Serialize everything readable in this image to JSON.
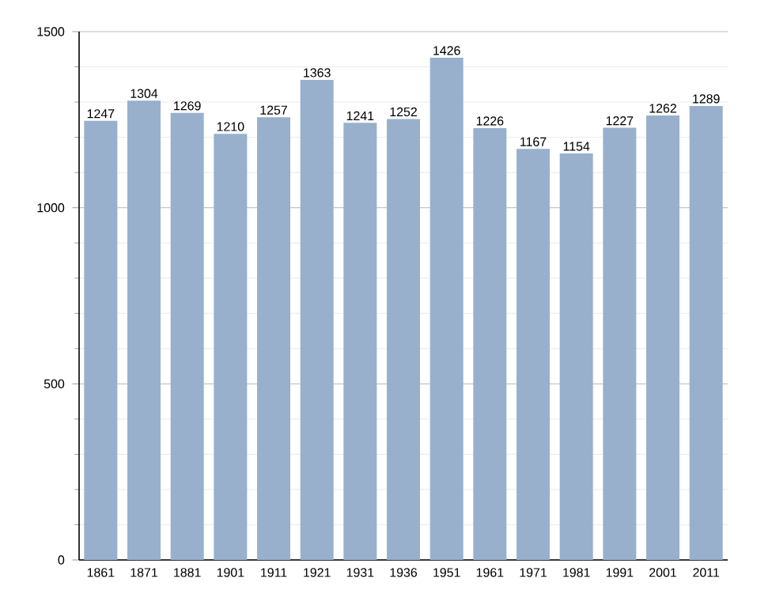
{
  "chart_data": {
    "type": "bar",
    "categories": [
      "1861",
      "1871",
      "1881",
      "1901",
      "1911",
      "1921",
      "1931",
      "1936",
      "1951",
      "1961",
      "1971",
      "1981",
      "1991",
      "2001",
      "2011"
    ],
    "values": [
      1247,
      1304,
      1269,
      1210,
      1257,
      1363,
      1241,
      1252,
      1426,
      1226,
      1167,
      1154,
      1227,
      1262,
      1289
    ],
    "color": "#98b0cb",
    "ylim": [
      0,
      1500
    ],
    "yticks": [
      0,
      500,
      1000,
      1500
    ],
    "grid": "y",
    "data_labels": true
  }
}
